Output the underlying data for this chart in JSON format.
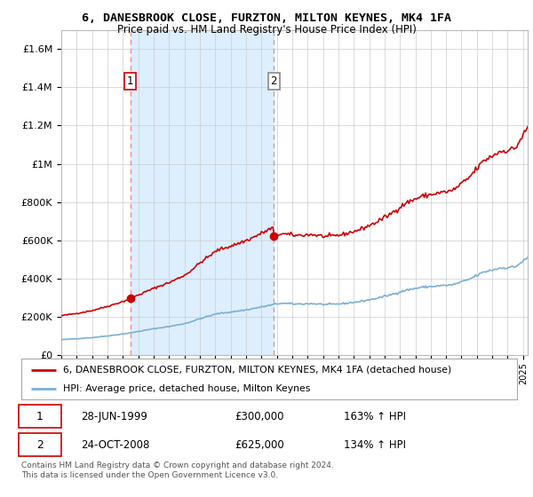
{
  "title": "6, DANESBROOK CLOSE, FURZTON, MILTON KEYNES, MK4 1FA",
  "subtitle": "Price paid vs. HM Land Registry's House Price Index (HPI)",
  "legend_line1": "6, DANESBROOK CLOSE, FURZTON, MILTON KEYNES, MK4 1FA (detached house)",
  "legend_line2": "HPI: Average price, detached house, Milton Keynes",
  "transaction1_date": "28-JUN-1999",
  "transaction1_price": "£300,000",
  "transaction1_hpi": "163% ↑ HPI",
  "transaction2_date": "24-OCT-2008",
  "transaction2_price": "£625,000",
  "transaction2_hpi": "134% ↑ HPI",
  "footer": "Contains HM Land Registry data © Crown copyright and database right 2024.\nThis data is licensed under the Open Government Licence v3.0.",
  "property_color": "#cc0000",
  "hpi_color": "#7bafd4",
  "shade_color": "#ddeeff",
  "transaction1_x": 1999.49,
  "transaction1_y": 300000,
  "transaction2_x": 2008.81,
  "transaction2_y": 625000,
  "ylim": [
    0,
    1700000
  ],
  "xlim_start": 1995.0,
  "xlim_end": 2025.3,
  "background_color": "#ffffff",
  "grid_color": "#cccccc",
  "title_fontsize": 9.5,
  "subtitle_fontsize": 8.5
}
